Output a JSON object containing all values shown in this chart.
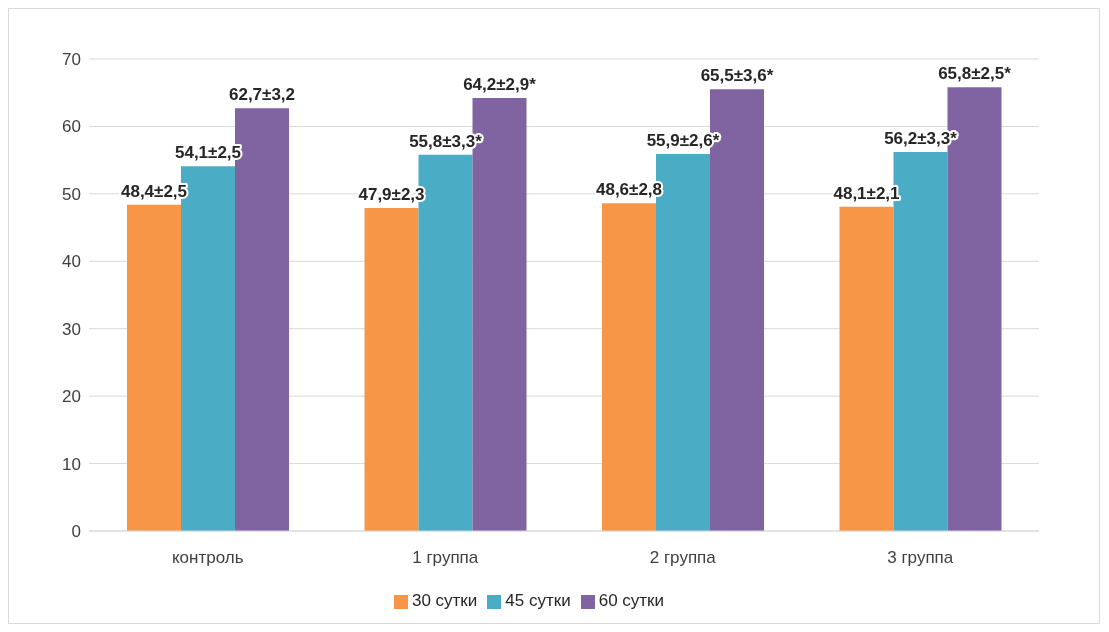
{
  "chart_data": {
    "type": "bar",
    "categories": [
      "контроль",
      "1 группа",
      "2 группа",
      "3 группа"
    ],
    "series": [
      {
        "name": "30 сутки",
        "color": "#f79646",
        "values": [
          48.4,
          47.9,
          48.6,
          48.1
        ],
        "value_labels": [
          "48,4±2,5",
          "47,9±2,3",
          "48,6±2,8",
          "48,1±2,1"
        ]
      },
      {
        "name": "45 сутки",
        "color": "#4bacc6",
        "values": [
          54.1,
          55.8,
          55.9,
          56.2
        ],
        "value_labels": [
          "54,1±2,5",
          "55,8±3,3*",
          "55,9±2,6*",
          "56,2±3,3*"
        ]
      },
      {
        "name": "60 сутки",
        "color": "#8064a2",
        "values": [
          62.7,
          64.2,
          65.5,
          65.8
        ],
        "value_labels": [
          "62,7±3,2",
          "64,2±2,9*",
          "65,5±3,6*",
          "65,8±2,5*"
        ]
      }
    ],
    "ylim": [
      0,
      70
    ],
    "yticks": [
      0,
      10,
      20,
      30,
      40,
      50,
      60,
      70
    ],
    "grid": "y",
    "legend": "bottom"
  }
}
